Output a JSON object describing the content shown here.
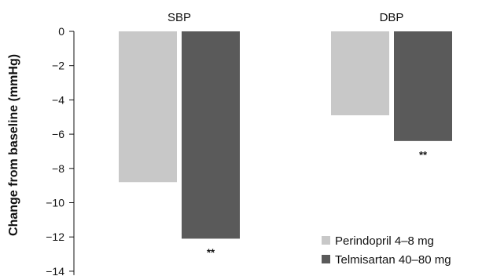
{
  "chart_data": {
    "type": "bar",
    "title": "",
    "xlabel": "",
    "ylabel": "Change from baseline (mmHg)",
    "categories": [
      "SBP",
      "DBP"
    ],
    "ylim": [
      -14,
      0
    ],
    "yticks": [
      0,
      -2,
      -4,
      -6,
      -8,
      -10,
      -12,
      -14
    ],
    "ytick_labels": [
      "0",
      "−2",
      "−4",
      "−6",
      "−8",
      "−10",
      "−12",
      "−14"
    ],
    "grid": false,
    "legend_position": "bottom-right",
    "series": [
      {
        "name": "Perindopril 4–8 mg",
        "values": [
          -8.8,
          -4.9
        ],
        "color": "#c8c8c8"
      },
      {
        "name": "Telmisartan 40–80 mg",
        "values": [
          -12.1,
          -6.4
        ],
        "color": "#5a5a5a"
      }
    ],
    "annotations": [
      {
        "series": 1,
        "category": 0,
        "text": "**"
      },
      {
        "series": 1,
        "category": 1,
        "text": "**"
      }
    ]
  }
}
